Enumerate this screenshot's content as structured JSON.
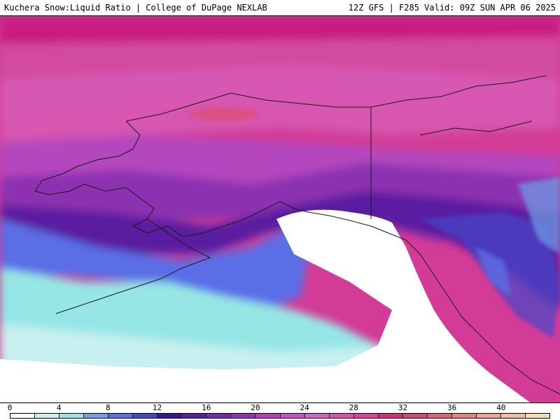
{
  "header": {
    "title": "Kuchera Snow:Liquid Ratio | College of DuPage NEXLAB",
    "run_info": "12Z GFS | F285 Valid: 09Z SUN APR 06 2025"
  },
  "map": {
    "field": "Snow:Liquid Ratio",
    "region": "Alaska / Gulf of Alaska"
  },
  "legend": {
    "tick_labels": [
      "0",
      "4",
      "8",
      "12",
      "16",
      "20",
      "24",
      "28",
      "32",
      "36",
      "40"
    ],
    "tick_values": [
      0,
      4,
      8,
      12,
      16,
      20,
      24,
      28,
      32,
      36,
      40
    ],
    "min": 0,
    "max": 44,
    "colors": [
      "#ffffff",
      "#c8f0f0",
      "#96e6e6",
      "#6ea0e6",
      "#5a6ee6",
      "#4646c8",
      "#3c1496",
      "#5a1ea0",
      "#7828aa",
      "#9632b4",
      "#b43cbe",
      "#c850c8",
      "#d264d2",
      "#dc50b4",
      "#e63ca0",
      "#dc2882",
      "#d24678",
      "#dc6478",
      "#e68282",
      "#f0a08c",
      "#f5be9b",
      "#fadcb4"
    ]
  }
}
